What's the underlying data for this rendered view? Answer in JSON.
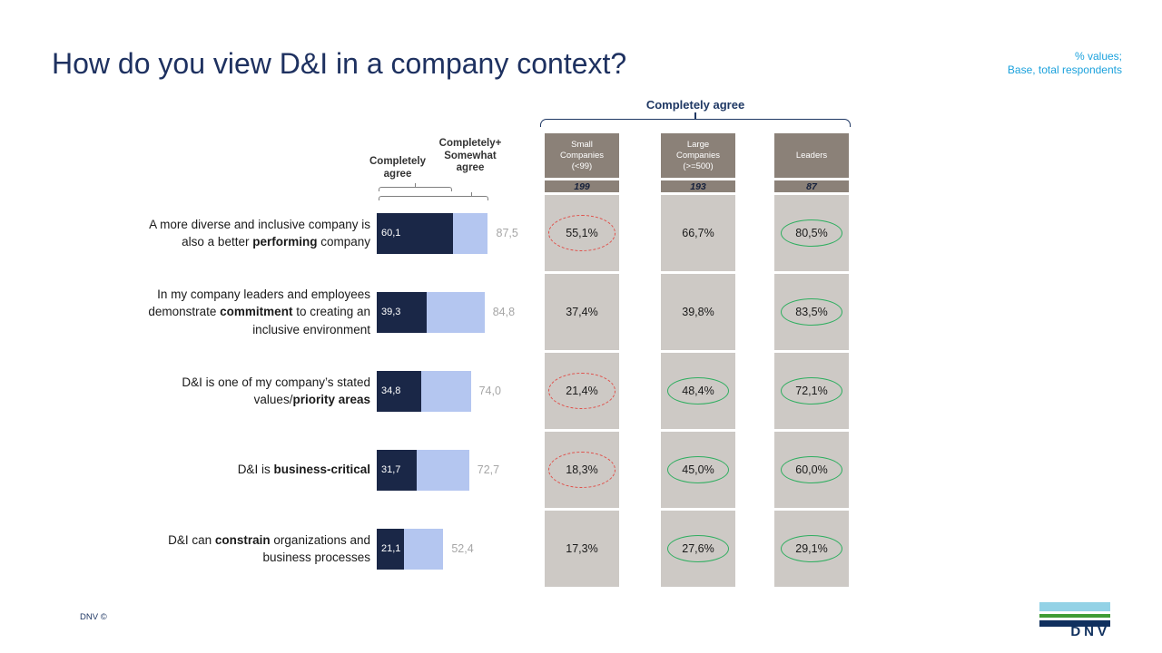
{
  "header": {
    "title": "How do you view D&I in a company context?",
    "note_lines": [
      "% values;",
      "Base, total respondents"
    ]
  },
  "bar_legend": {
    "dark_label_lines": [
      "Completely",
      "agree"
    ],
    "total_label_lines": [
      "Completely+",
      "Somewhat",
      "agree"
    ]
  },
  "group_header": {
    "label": "Completely agree",
    "columns": [
      {
        "name_lines": [
          "Small",
          "Companies",
          "(<99)"
        ],
        "base": "199"
      },
      {
        "name_lines": [
          "Large",
          "Companies",
          "(>=500)"
        ],
        "base": "193"
      },
      {
        "name_lines": [
          "Leaders"
        ],
        "base": "87"
      }
    ]
  },
  "rows": [
    {
      "label_lines": [
        [
          {
            "t": "A more diverse and inclusive company is"
          }
        ],
        [
          {
            "t": "also a better "
          },
          {
            "t": "performing",
            "b": 1
          },
          {
            "t": " company"
          }
        ]
      ],
      "dark": "60,1",
      "total": "87,5",
      "cells": [
        {
          "v": "55,1%",
          "hl": "red"
        },
        {
          "v": "66,7%",
          "hl": "none"
        },
        {
          "v": "80,5%",
          "hl": "green"
        }
      ]
    },
    {
      "label_lines": [
        [
          {
            "t": "In my company leaders and employees"
          }
        ],
        [
          {
            "t": "demonstrate "
          },
          {
            "t": "commitment",
            "b": 1
          },
          {
            "t": " to creating an"
          }
        ],
        [
          {
            "t": "inclusive environment"
          }
        ]
      ],
      "dark": "39,3",
      "total": "84,8",
      "cells": [
        {
          "v": "37,4%",
          "hl": "none"
        },
        {
          "v": "39,8%",
          "hl": "none"
        },
        {
          "v": "83,5%",
          "hl": "green"
        }
      ]
    },
    {
      "label_lines": [
        [
          {
            "t": "D&I is one of my company’s stated"
          }
        ],
        [
          {
            "t": "values/"
          },
          {
            "t": "priority areas",
            "b": 1
          }
        ]
      ],
      "dark": "34,8",
      "total": "74,0",
      "cells": [
        {
          "v": "21,4%",
          "hl": "red"
        },
        {
          "v": "48,4%",
          "hl": "green"
        },
        {
          "v": "72,1%",
          "hl": "green"
        }
      ]
    },
    {
      "label_lines": [
        [
          {
            "t": "D&I is "
          },
          {
            "t": "business-critical",
            "b": 1
          }
        ]
      ],
      "dark": "31,7",
      "total": "72,7",
      "cells": [
        {
          "v": "18,3%",
          "hl": "red"
        },
        {
          "v": "45,0%",
          "hl": "green"
        },
        {
          "v": "60,0%",
          "hl": "green"
        }
      ]
    },
    {
      "label_lines": [
        [
          {
            "t": "D&I can "
          },
          {
            "t": "constrain",
            "b": 1
          },
          {
            "t": " organizations and"
          }
        ],
        [
          {
            "t": "business processes"
          }
        ]
      ],
      "dark": "21,1",
      "total": "52,4",
      "cells": [
        {
          "v": "17,3%",
          "hl": "none"
        },
        {
          "v": "27,6%",
          "hl": "green"
        },
        {
          "v": "29,1%",
          "hl": "green"
        }
      ]
    }
  ],
  "footer": {
    "copyright": "DNV ©",
    "logo_text": "DNV"
  },
  "colors": {
    "title_navy": "#1e3160",
    "note_cyan": "#1ba1dc",
    "bar_dark": "#1a2747",
    "bar_light": "#b4c6f0",
    "total_grey": "#a6a6a6",
    "column_header_grey": "#8b8178",
    "cell_grey": "#cdc9c5",
    "highlight_green": "#2fae60",
    "highlight_red": "#e0514b",
    "logo_blue": "#93d2e6",
    "logo_green": "#3f9c35",
    "logo_navy": "#10305e"
  },
  "chart_data": {
    "type": "bar",
    "orientation": "horizontal",
    "title": "How do you view D&I in a company context?",
    "note": "% values; Base, total respondents",
    "categories": [
      "A more diverse and inclusive company is also a better performing company",
      "In my company leaders and employees demonstrate commitment to creating an inclusive environment",
      "D&I is one of my company’s stated values/priority areas",
      "D&I is business-critical",
      "D&I can constrain organizations and business processes"
    ],
    "series": [
      {
        "name": "Completely agree",
        "values": [
          60.1,
          39.3,
          34.8,
          31.7,
          21.1
        ]
      },
      {
        "name": "Completely + Somewhat agree (total)",
        "values": [
          87.5,
          84.8,
          74.0,
          72.7,
          52.4
        ]
      },
      {
        "name": "Small Companies (<99) — Completely agree",
        "base": 199,
        "values": [
          55.1,
          37.4,
          21.4,
          18.3,
          17.3
        ]
      },
      {
        "name": "Large Companies (>=500) — Completely agree",
        "base": 193,
        "values": [
          66.7,
          39.8,
          48.4,
          45.0,
          27.6
        ]
      },
      {
        "name": "Leaders — Completely agree",
        "base": 87,
        "values": [
          80.5,
          83.5,
          72.1,
          60.0,
          29.1
        ]
      }
    ],
    "xlim": [
      0,
      100
    ],
    "legend_position": "above bars, left",
    "grid": false,
    "highlights": {
      "red_dashed_circled": [
        {
          "column": "Small Companies (<99)",
          "row": 1,
          "value": 55.1
        },
        {
          "column": "Small Companies (<99)",
          "row": 3,
          "value": 21.4
        },
        {
          "column": "Small Companies (<99)",
          "row": 4,
          "value": 18.3
        }
      ],
      "green_circled": [
        {
          "column": "Leaders",
          "row": 1,
          "value": 80.5
        },
        {
          "column": "Leaders",
          "row": 2,
          "value": 83.5
        },
        {
          "column": "Large Companies (>=500)",
          "row": 3,
          "value": 48.4
        },
        {
          "column": "Leaders",
          "row": 3,
          "value": 72.1
        },
        {
          "column": "Large Companies (>=500)",
          "row": 4,
          "value": 45.0
        },
        {
          "column": "Leaders",
          "row": 4,
          "value": 60.0
        },
        {
          "column": "Large Companies (>=500)",
          "row": 5,
          "value": 27.6
        },
        {
          "column": "Leaders",
          "row": 5,
          "value": 29.1
        }
      ]
    }
  }
}
